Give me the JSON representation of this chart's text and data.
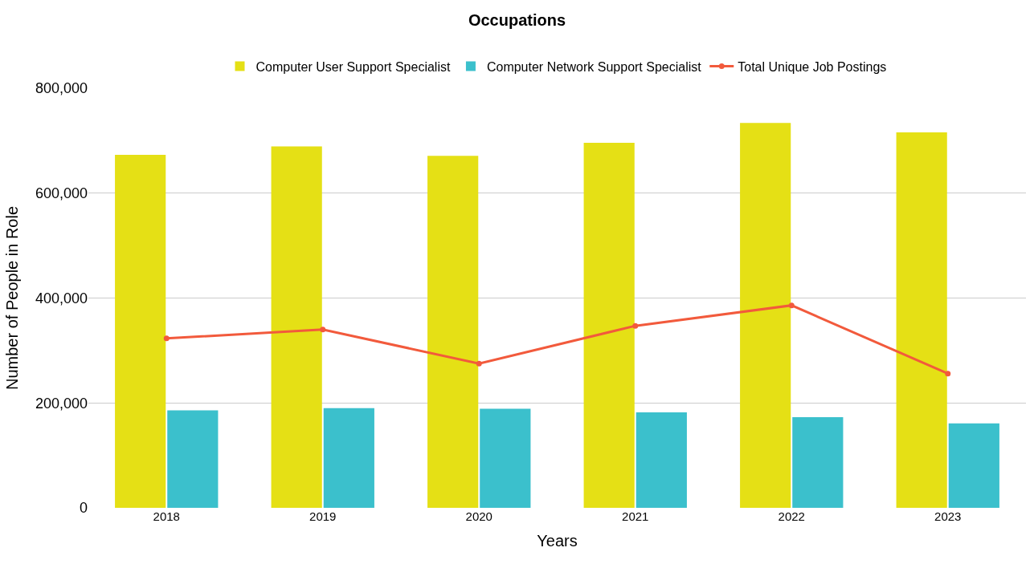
{
  "chart_data": {
    "type": "bar",
    "title": "Occupations",
    "xlabel": "Years",
    "ylabel": "Number of People in Role",
    "categories": [
      "2018",
      "2019",
      "2020",
      "2021",
      "2022",
      "2023"
    ],
    "series": [
      {
        "name": "Computer User Support Specialist",
        "color": "#e5e015",
        "values": [
          673000,
          689000,
          671000,
          696000,
          734000,
          716000
        ]
      },
      {
        "name": "Computer Network Support Specialist",
        "color": "#3bc0cc",
        "values": [
          186000,
          190000,
          189000,
          182000,
          173000,
          161000
        ]
      },
      {
        "name": "Total Unique Job Postings",
        "type": "line",
        "color": "#f25a3c",
        "marker": "circle",
        "values": [
          323000,
          340000,
          275000,
          347000,
          386000,
          256000
        ]
      }
    ],
    "ylim": [
      0,
      800000
    ],
    "yticks": [
      {
        "value": 0,
        "label": "0"
      },
      {
        "value": 200000,
        "label": "200,000"
      },
      {
        "value": 400000,
        "label": "400,000"
      },
      {
        "value": 600000,
        "label": "600,000"
      },
      {
        "value": 800000,
        "label": "800,000"
      }
    ],
    "grid": "y",
    "legend": "top"
  }
}
